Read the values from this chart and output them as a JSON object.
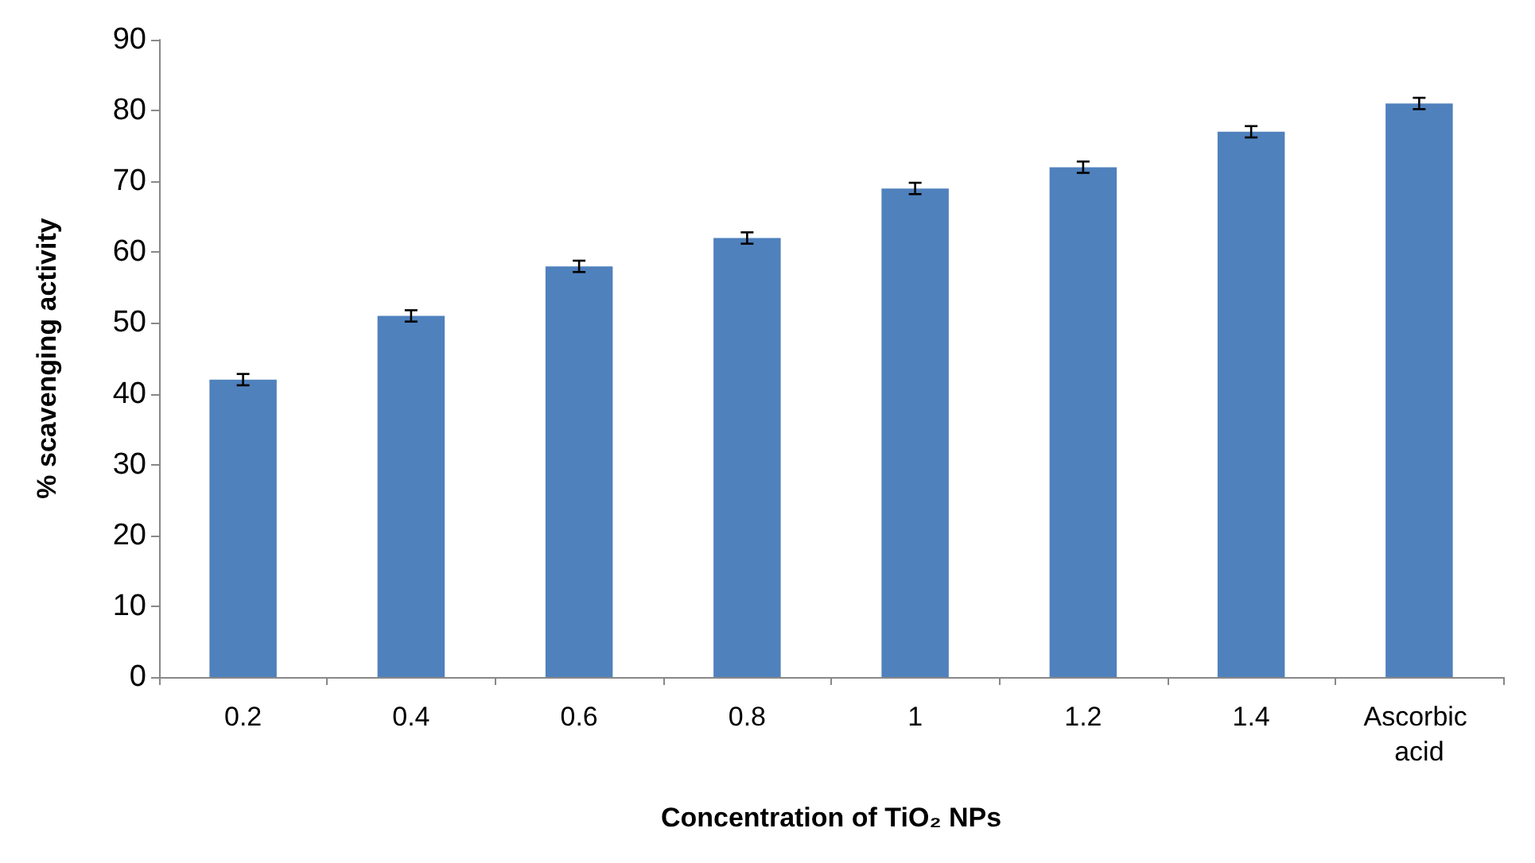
{
  "chart_data": {
    "type": "bar",
    "xlabel": "Concentration of TiO₂ NPs",
    "ylabel": "% scavenging activity",
    "categories": [
      "0.2",
      "0.4",
      "0.6",
      "0.8",
      "1",
      "1.2",
      "1.4",
      "Ascorbic acid"
    ],
    "values": [
      42,
      51,
      58,
      62,
      69,
      72,
      77,
      81
    ],
    "errors": [
      0.8,
      0.8,
      0.8,
      0.8,
      0.8,
      0.8,
      0.8,
      0.8
    ],
    "color": "#4f81bd",
    "ylim": [
      0,
      90
    ],
    "yticks": [
      0,
      10,
      20,
      30,
      40,
      50,
      60,
      70,
      80,
      90
    ],
    "grid": false
  }
}
